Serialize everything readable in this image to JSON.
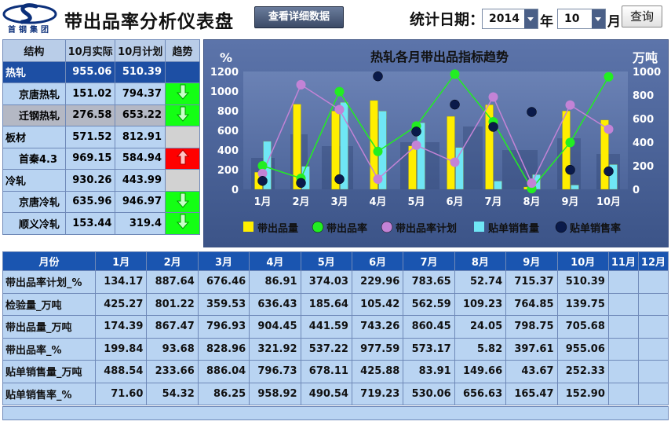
{
  "header": {
    "logo_text": "首钢集团",
    "title": "带出品率分析仪表盘",
    "detail_button": "查看详细数据",
    "date_label": "统计日期：",
    "year_value": "2014",
    "year_unit": "年",
    "month_value": "10",
    "month_unit": "月",
    "query_button": "查询"
  },
  "colors": {
    "accent_blue": "#1d4fa4",
    "trend_up": "#ff0000",
    "trend_down": "#14ff14",
    "bar_yellow": "#ffee00",
    "bar_cyan": "#6fe6f5",
    "line_green": "#22ee22",
    "line_purple": "#c383d6",
    "dot_navy": "#0a1a4a"
  },
  "structure_table": {
    "headers": [
      "结构",
      "10月实际",
      "10月计划",
      "趋势"
    ],
    "rows": [
      {
        "name": "热轧",
        "actual": "955.06",
        "plan": "510.39",
        "trend": "none",
        "level": 0,
        "style": "dark",
        "trend_cell": "blue"
      },
      {
        "name": "京唐热轧",
        "actual": "151.02",
        "plan": "794.37",
        "trend": "down",
        "level": 1,
        "style": "light"
      },
      {
        "name": "迁钢热轧",
        "actual": "276.58",
        "plan": "653.22",
        "trend": "down",
        "level": 1,
        "style": "grey"
      },
      {
        "name": "板材",
        "actual": "571.52",
        "plan": "812.91",
        "trend": "none",
        "level": 0,
        "style": "light"
      },
      {
        "name": "首秦4.3",
        "actual": "969.15",
        "plan": "584.94",
        "trend": "up",
        "level": 1,
        "style": "light"
      },
      {
        "name": "冷轧",
        "actual": "930.26",
        "plan": "443.99",
        "trend": "none",
        "level": 0,
        "style": "light"
      },
      {
        "name": "京唐冷轧",
        "actual": "635.96",
        "plan": "946.97",
        "trend": "down",
        "level": 1,
        "style": "light"
      },
      {
        "name": "顺义冷轧",
        "actual": "153.44",
        "plan": "319.4",
        "trend": "down",
        "level": 1,
        "style": "light"
      }
    ]
  },
  "chart_data": {
    "type": "bar",
    "title": "热轧各月带出品指标趋势",
    "ylabel_left": "%",
    "ylabel_right": "万吨",
    "ylim_left": [
      0,
      1200
    ],
    "ylim_right": [
      0,
      1000
    ],
    "yticks_left": [
      0,
      200,
      400,
      600,
      800,
      1000,
      1200
    ],
    "yticks_right": [
      0,
      200,
      400,
      600,
      800,
      1000
    ],
    "categories": [
      "1月",
      "2月",
      "3月",
      "4月",
      "5月",
      "6月",
      "7月",
      "8月",
      "9月",
      "10月"
    ],
    "bar_series": [
      {
        "name": "带出品量",
        "axis": "left",
        "color": "#ffee00",
        "values": [
          174.39,
          867.47,
          796.93,
          904.45,
          441.59,
          743.26,
          860.45,
          24.05,
          798.75,
          705.68
        ]
      },
      {
        "name": "贴单销售量",
        "axis": "left",
        "color": "#6fe6f5",
        "values": [
          488.54,
          233.66,
          886.04,
          796.73,
          678.11,
          425.88,
          83.91,
          149.66,
          43.67,
          252.33
        ]
      }
    ],
    "line_series": [
      {
        "name": "带出品率",
        "axis": "right",
        "color": "#22ee22",
        "values": [
          199.84,
          93.68,
          828.96,
          321.92,
          537.22,
          977.59,
          573.17,
          5.82,
          397.61,
          955.06
        ]
      },
      {
        "name": "带出品率计划",
        "axis": "right",
        "color": "#c383d6",
        "values": [
          134.17,
          887.64,
          676.46,
          86.91,
          374.03,
          229.96,
          783.65,
          52.74,
          715.37,
          510.39
        ]
      },
      {
        "name": "贴单销售率",
        "axis": "right",
        "color": "#0a1a4a",
        "values": [
          71.6,
          54.32,
          86.25,
          958.92,
          490.54,
          719.23,
          530.06,
          656.63,
          165.47,
          152.9
        ]
      }
    ],
    "legend": [
      "带出品量",
      "带出品率",
      "带出品率计划",
      "贴单销售量",
      "贴单销售率"
    ],
    "legend_position": "bottom",
    "grid": false
  },
  "monthly_table": {
    "corner_header": "月份",
    "months": [
      "1月",
      "2月",
      "3月",
      "4月",
      "5月",
      "6月",
      "7月",
      "8月",
      "9月",
      "10月",
      "11月",
      "12月"
    ],
    "rows": [
      {
        "label": "带出品率计划_%",
        "values": [
          "134.17",
          "887.64",
          "676.46",
          "86.91",
          "374.03",
          "229.96",
          "783.65",
          "52.74",
          "715.37",
          "510.39",
          "",
          ""
        ]
      },
      {
        "label": "检验量_万吨",
        "values": [
          "425.27",
          "801.22",
          "359.53",
          "636.43",
          "185.64",
          "105.42",
          "562.59",
          "109.23",
          "764.85",
          "139.75",
          "",
          ""
        ]
      },
      {
        "label": "带出品量_万吨",
        "values": [
          "174.39",
          "867.47",
          "796.93",
          "904.45",
          "441.59",
          "743.26",
          "860.45",
          "24.05",
          "798.75",
          "705.68",
          "",
          ""
        ]
      },
      {
        "label": "带出品率_%",
        "values": [
          "199.84",
          "93.68",
          "828.96",
          "321.92",
          "537.22",
          "977.59",
          "573.17",
          "5.82",
          "397.61",
          "955.06",
          "",
          ""
        ]
      },
      {
        "label": "贴单销售量_万吨",
        "values": [
          "488.54",
          "233.66",
          "886.04",
          "796.73",
          "678.11",
          "425.88",
          "83.91",
          "149.66",
          "43.67",
          "252.33",
          "",
          ""
        ]
      },
      {
        "label": "贴单销售率_%",
        "values": [
          "71.60",
          "54.32",
          "86.25",
          "958.92",
          "490.54",
          "719.23",
          "530.06",
          "656.63",
          "165.47",
          "152.90",
          "",
          ""
        ]
      }
    ]
  }
}
